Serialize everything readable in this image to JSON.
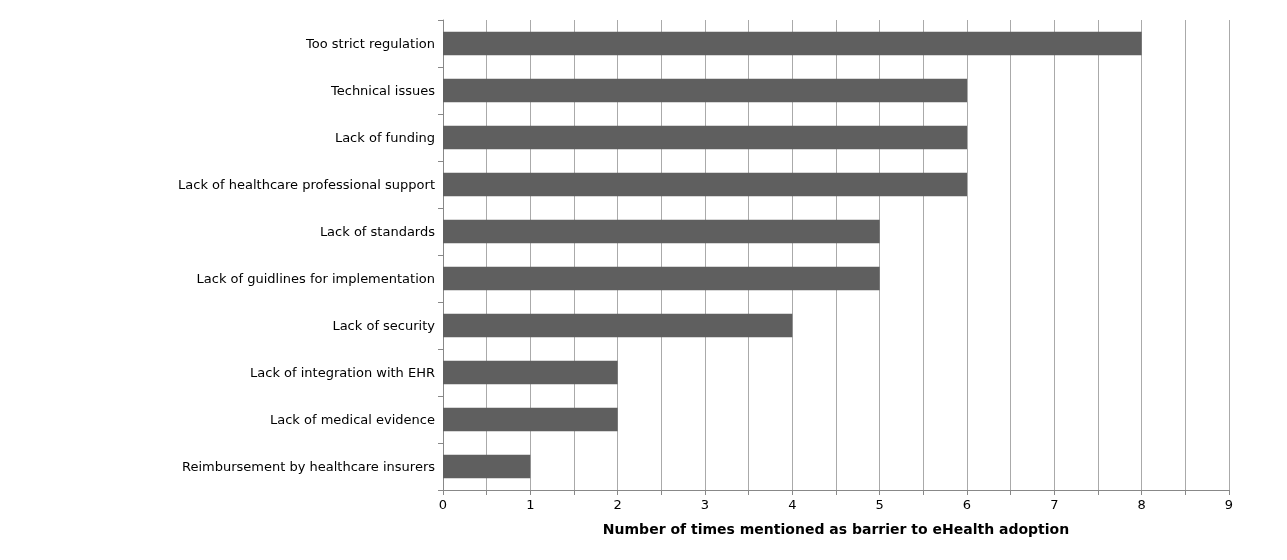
{
  "chart_data": {
    "type": "bar",
    "orientation": "horizontal",
    "xlabel": "Number of times mentioned as barrier to eHealth adoption",
    "categories": [
      "Too strict regulation",
      "Technical issues",
      "Lack of funding",
      "Lack of healthcare professional support",
      "Lack of standards",
      "Lack of guidlines for implementation",
      "Lack of security",
      "Lack of integration with EHR",
      "Lack of medical evidence",
      "Reimbursement by healthcare insurers"
    ],
    "values": [
      8,
      6,
      6,
      6,
      5,
      5,
      4,
      2,
      2,
      1
    ],
    "color": "#5f5f5f",
    "xlim": [
      0,
      9
    ],
    "xticks": [
      0,
      {
        "value": 0.5,
        "label": null
      },
      1,
      {
        "value": 1.5,
        "label": null
      },
      2,
      {
        "value": 2.5,
        "label": null
      },
      3,
      {
        "value": 3.5,
        "label": null
      },
      4,
      {
        "value": 4.5,
        "label": null
      },
      5,
      {
        "value": 5.5,
        "label": null
      },
      6,
      {
        "value": 6.5,
        "label": null
      },
      7,
      {
        "value": 7.5,
        "label": null
      },
      8,
      {
        "value": 8.5,
        "label": null
      },
      9
    ],
    "grid": "x"
  }
}
